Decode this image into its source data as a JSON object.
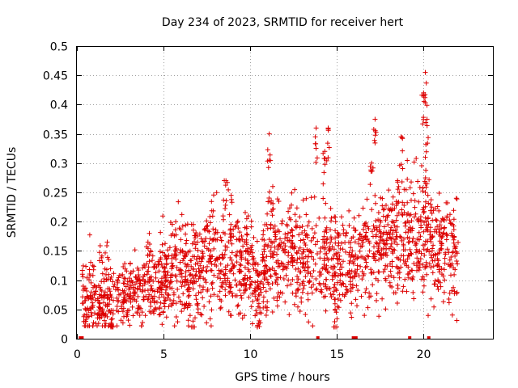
{
  "chart_data": {
    "type": "scatter",
    "title": "Day 234 of 2023, SRMTID for receiver hert",
    "xlabel": "GPS time / hours",
    "ylabel": "SRMTID / TECUs",
    "xlim": [
      0,
      24
    ],
    "ylim": [
      0,
      0.5
    ],
    "xticks": [
      0,
      5,
      10,
      15,
      20
    ],
    "xtick_labels": [
      "0",
      "5",
      "10",
      "15",
      "20"
    ],
    "yticks": [
      0,
      0.05,
      0.1,
      0.15,
      0.2,
      0.25,
      0.3,
      0.35,
      0.4,
      0.45,
      0.5
    ],
    "ytick_labels": [
      "0",
      "0.05",
      "0.1",
      "0.15",
      "0.2",
      "0.25",
      "0.3",
      "0.35",
      "0.4",
      "0.45",
      "0.5"
    ],
    "grid": true,
    "marker": "+",
    "color": "#dd0000",
    "series": [
      {
        "name": "SRMTID",
        "trend": {
          "x": [
            0.3,
            1.0,
            2.0,
            3.0,
            4.0,
            5.0,
            6.0,
            7.0,
            8.0,
            9.0,
            10.0,
            10.5,
            11.0,
            12.0,
            13.0,
            14.0,
            15.0,
            16.0,
            17.0,
            18.0,
            19.0,
            20.0,
            21.0,
            22.0
          ],
          "y": [
            0.07,
            0.065,
            0.06,
            0.075,
            0.09,
            0.1,
            0.115,
            0.12,
            0.14,
            0.13,
            0.13,
            0.09,
            0.14,
            0.14,
            0.13,
            0.14,
            0.13,
            0.12,
            0.15,
            0.16,
            0.18,
            0.17,
            0.15,
            0.14
          ]
        },
        "features": [
          {
            "x": 1.75,
            "y": 0.165
          },
          {
            "x": 4.1,
            "y": 0.165
          },
          {
            "x": 5.7,
            "y": 0.2
          },
          {
            "x": 8.6,
            "y": 0.27
          },
          {
            "x": 8.9,
            "y": 0.245
          },
          {
            "x": 9.8,
            "y": 0.205
          },
          {
            "x": 11.1,
            "y": 0.35
          },
          {
            "x": 11.3,
            "y": 0.26
          },
          {
            "x": 13.8,
            "y": 0.36
          },
          {
            "x": 14.5,
            "y": 0.36
          },
          {
            "x": 14.3,
            "y": 0.32
          },
          {
            "x": 17.0,
            "y": 0.3
          },
          {
            "x": 17.2,
            "y": 0.375
          },
          {
            "x": 18.7,
            "y": 0.345
          },
          {
            "x": 18.5,
            "y": 0.27
          },
          {
            "x": 20.1,
            "y": 0.455
          },
          {
            "x": 20.0,
            "y": 0.42
          },
          {
            "x": 20.2,
            "y": 0.375
          },
          {
            "x": 20.1,
            "y": 0.31
          },
          {
            "x": 20.1,
            "y": 0.25
          },
          {
            "x": 14.9,
            "y": 0.05
          },
          {
            "x": 10.5,
            "y": 0.06
          },
          {
            "x": 2.0,
            "y": 0.025
          },
          {
            "x": 6.7,
            "y": 0.03
          }
        ],
        "zero_points": {
          "x": [
            0.2,
            0.25,
            0.3,
            13.9,
            15.95,
            16.0,
            16.05,
            16.1,
            19.2,
            20.3
          ]
        }
      }
    ]
  }
}
